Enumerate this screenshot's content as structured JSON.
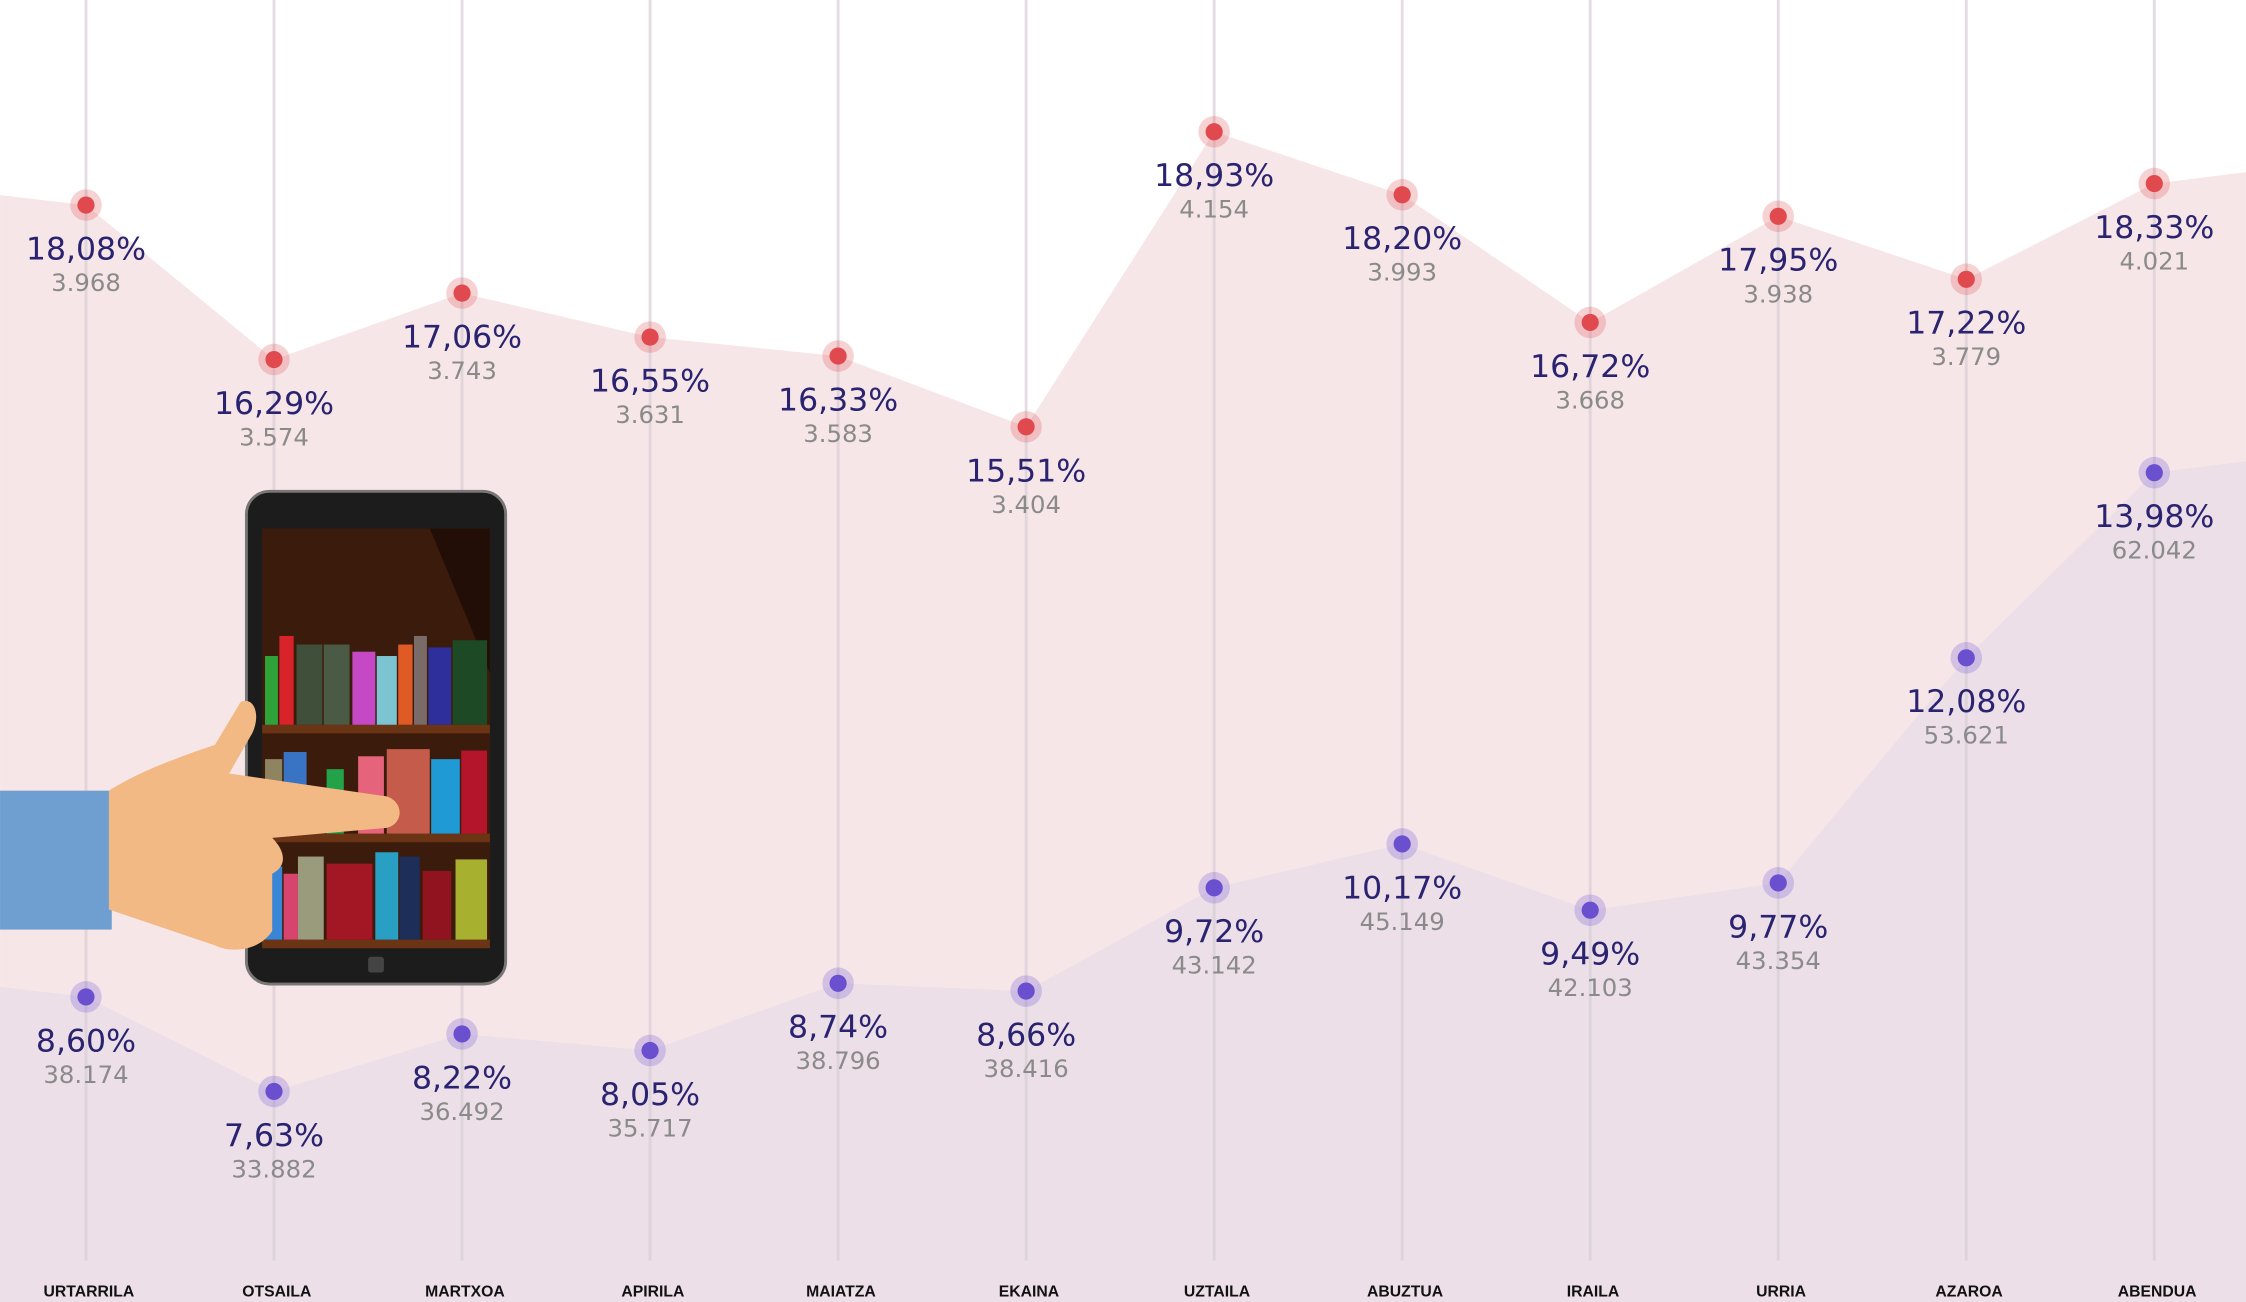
{
  "chart_data": {
    "type": "line",
    "categories": [
      "URTARRILA",
      "OTSAILA",
      "MARTXOA",
      "APIRILA",
      "MAIATZA",
      "EKAINA",
      "UZTAILA",
      "ABUZTUA",
      "IRAILA",
      "URRIA",
      "AZAROA",
      "ABENDUA"
    ],
    "series": [
      {
        "color": "#e04a4f",
        "area_color": "#f7e6e8",
        "values": [
          18.08,
          16.29,
          17.06,
          16.55,
          16.33,
          15.51,
          18.93,
          18.2,
          16.72,
          17.95,
          17.22,
          18.33
        ],
        "value_labels": [
          "18,08%",
          "16,29%",
          "17,06%",
          "16,55%",
          "16,33%",
          "15,51%",
          "18,93%",
          "18,20%",
          "16,72%",
          "17,95%",
          "17,22%",
          "18,33%"
        ],
        "counts": [
          3968,
          3574,
          3743,
          3631,
          3583,
          3404,
          4154,
          3993,
          3668,
          3938,
          3779,
          4021
        ],
        "count_labels": [
          "3.968",
          "3.574",
          "3.743",
          "3.631",
          "3.583",
          "3.404",
          "4.154",
          "3.993",
          "3.668",
          "3.938",
          "3.779",
          "4.021"
        ]
      },
      {
        "color": "#6a4fcf",
        "area_color": "#ecdfe8",
        "values": [
          8.6,
          7.63,
          8.22,
          8.05,
          8.74,
          8.66,
          9.72,
          10.17,
          9.49,
          9.77,
          12.08,
          13.98
        ],
        "value_labels": [
          "8,60%",
          "7,63%",
          "8,22%",
          "8,05%",
          "8,74%",
          "8,66%",
          "9,72%",
          "10,17%",
          "9,49%",
          "9,77%",
          "12,08%",
          "13,98%"
        ],
        "counts": [
          38174,
          33882,
          36492,
          35717,
          38796,
          38416,
          43142,
          45149,
          42103,
          43354,
          53621,
          62042
        ],
        "count_labels": [
          "38.174",
          "33.882",
          "36.492",
          "35.717",
          "38.796",
          "38.416",
          "43.142",
          "45.149",
          "42.103",
          "43.354",
          "53.621",
          "62.042"
        ]
      }
    ]
  }
}
